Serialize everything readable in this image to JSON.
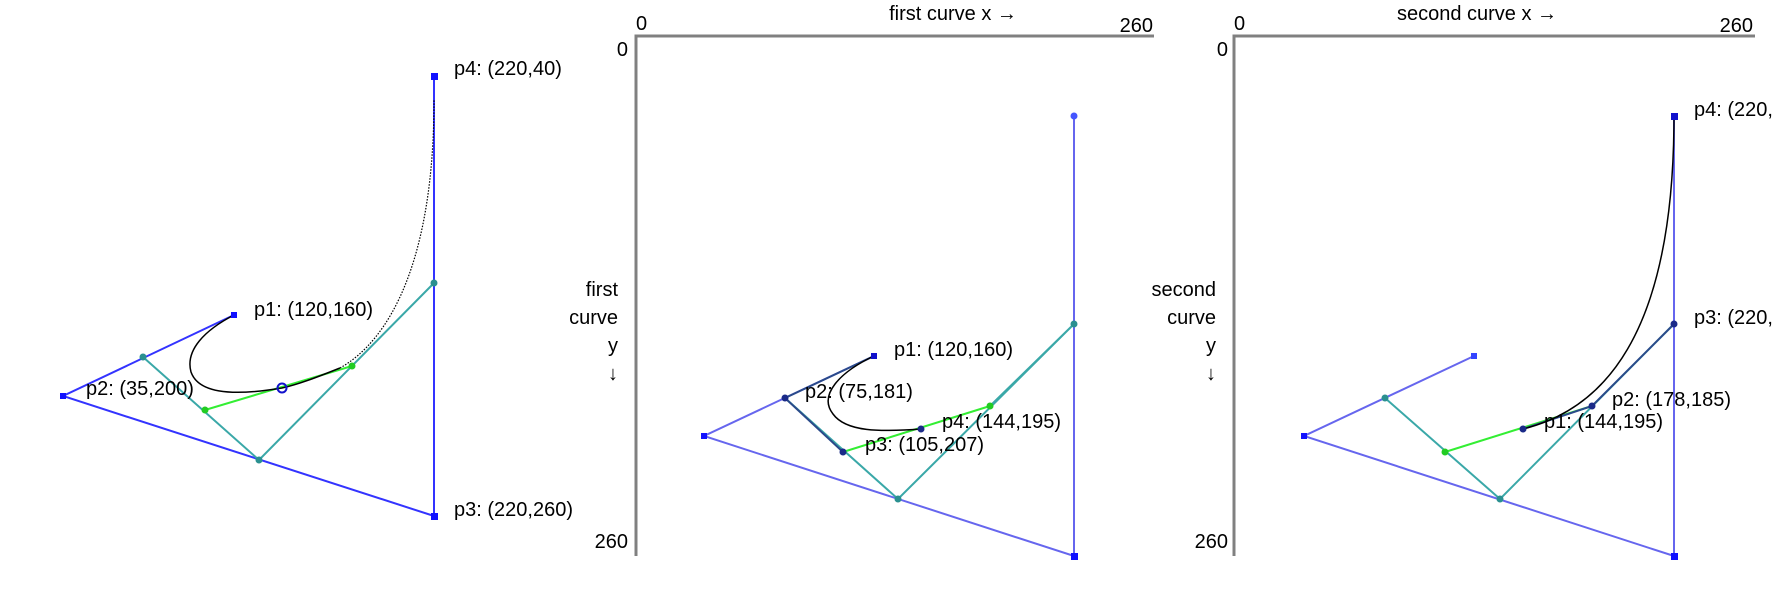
{
  "panel1": {
    "labels": {
      "p1": "p1: (120,160)",
      "p2": "p2: (35,200)",
      "p3": "p3: (220,260)",
      "p4": "p4: (220,40)"
    }
  },
  "panel2": {
    "x_axis_title": "first curve x →",
    "y_axis_title": [
      "first",
      "curve",
      "y",
      "↓"
    ],
    "x_min": "0",
    "x_max": "260",
    "y_min": "0",
    "y_max": "260",
    "labels": {
      "p1": "p1: (120,160)",
      "p2": "p2: (75,181)",
      "p3": "p3: (105,207)",
      "p4": "p4: (144,195)"
    }
  },
  "panel3": {
    "x_axis_title": "second curve x →",
    "y_axis_title": [
      "second",
      "curve",
      "y",
      "↓"
    ],
    "x_min": "0",
    "x_max": "260",
    "y_min": "0",
    "y_max": "260",
    "labels": {
      "p1": "p1: (144,195)",
      "p2": "p2: (178,185)",
      "p3": "p3: (220,",
      "p4": "p4: (220,"
    }
  },
  "colors": {
    "control_polygon": "#3333ff",
    "construction": "#3aa8a8",
    "split_segment": "#33ee33",
    "curve": "#000000",
    "axis": "#808080"
  }
}
